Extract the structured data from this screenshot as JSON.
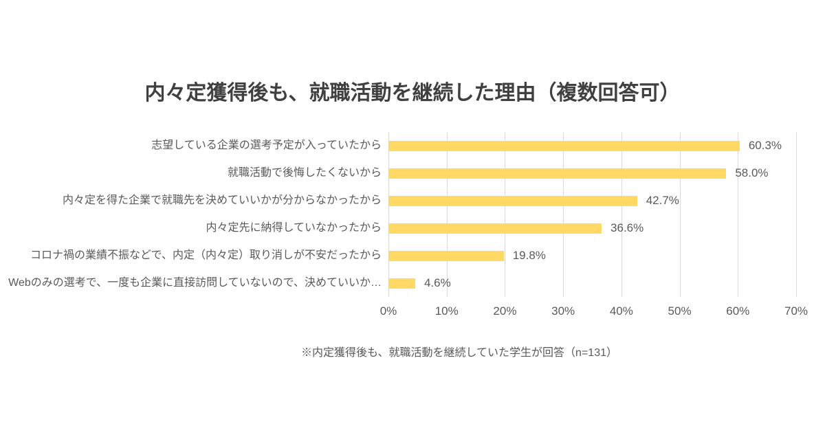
{
  "title": "内々定獲得後も、就職活動を継続した理由（複数回答可）",
  "footnote": "※内定獲得後も、就職活動を継続していた学生が回答（n=131）",
  "colors": {
    "bar": "#FFD966",
    "grid": "#D9D9D9",
    "title_text": "#404040",
    "label_text": "#595959",
    "background": "#FFFFFF"
  },
  "chart_data": {
    "type": "bar",
    "orientation": "horizontal",
    "title": "内々定獲得後も、就職活動を継続した理由（複数回答可）",
    "categories": [
      "志望している企業の選考予定が入っていたから",
      "就職活動で後悔したくないから",
      "内々定を得た企業で就職先を決めていいかが分からなかったから",
      "内々定先に納得していなかったから",
      "コロナ禍の業績不振などで、内定（内々定）取り消しが不安だったから",
      "Webのみの選考で、一度も企業に直接訪問していないので、決めていいか…"
    ],
    "values": [
      60.3,
      58.0,
      42.7,
      36.6,
      19.8,
      4.6
    ],
    "value_labels": [
      "60.3%",
      "58.0%",
      "42.7%",
      "36.6%",
      "19.8%",
      "4.6%"
    ],
    "xlim": [
      0,
      70
    ],
    "x_tick_values": [
      0,
      10,
      20,
      30,
      40,
      50,
      60,
      70
    ],
    "x_tick_labels": [
      "0%",
      "10%",
      "20%",
      "30%",
      "40%",
      "50%",
      "60%",
      "70%"
    ],
    "grid": true,
    "legend": false,
    "annotation": "※内定獲得後も、就職活動を継続していた学生が回答（n=131）"
  }
}
